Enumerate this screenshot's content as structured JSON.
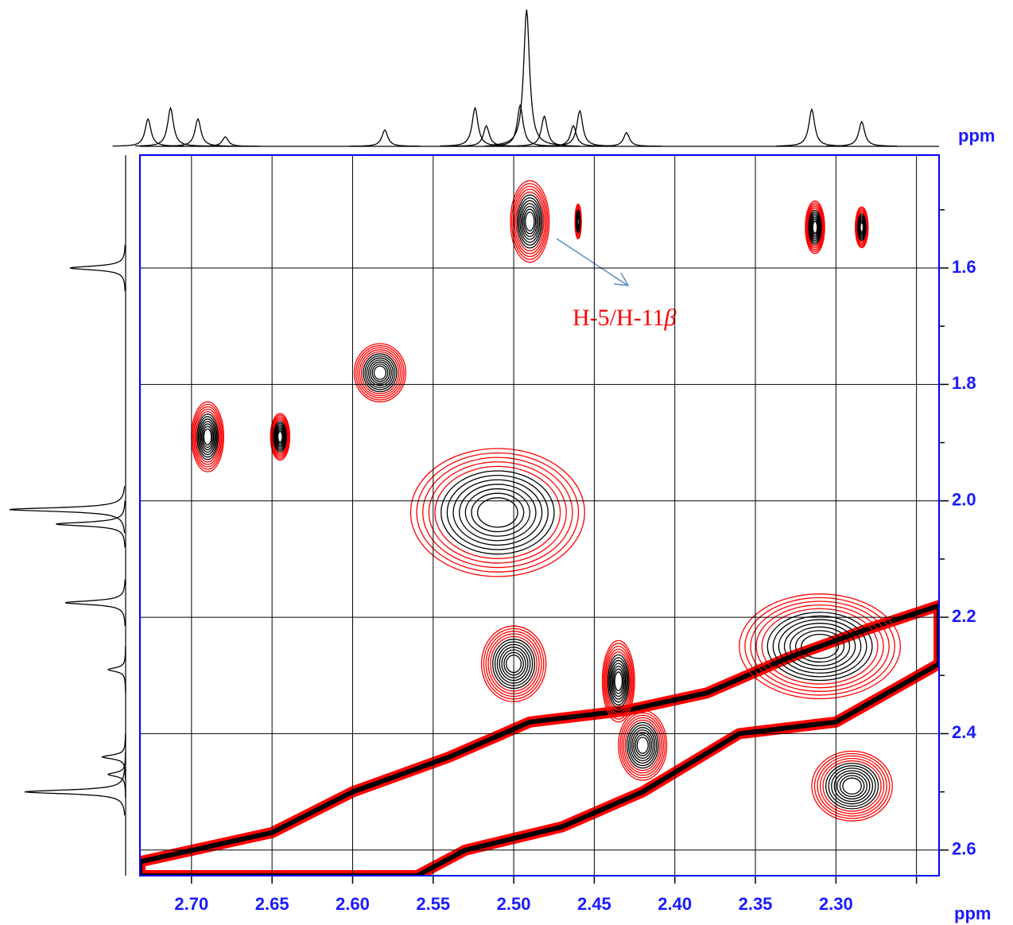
{
  "chart_data": {
    "type": "contour",
    "x_label": "ppm",
    "y_label": "ppm",
    "annotation": "H-5/H-11",
    "annotation_symbol": "β",
    "xlim": [
      2.732,
      2.236
    ],
    "ylim": [
      1.406,
      2.644
    ],
    "xticks": [
      {
        "value": 2.7,
        "label": "2.70"
      },
      2.65,
      {
        "value": 2.6,
        "label": "2.60"
      },
      2.55,
      {
        "value": 2.5,
        "label": "2.50"
      },
      2.45,
      {
        "value": 2.4,
        "label": "2.40"
      },
      2.35,
      {
        "value": 2.3,
        "label": "2.30"
      }
    ],
    "xminor_ticks": [
      2.25
    ],
    "yticks": [
      1.6,
      1.8,
      {
        "value": 2,
        "label": "2.0"
      },
      2.2,
      2.4,
      2.6
    ],
    "yminor_ticks": [
      1.5,
      1.7,
      1.9,
      2.1,
      2.3,
      2.5
    ],
    "grid": true,
    "colors": [
      "#ff0000",
      "#000000"
    ],
    "peaks": {
      "x": [
        2.49,
        2.46,
        2.313,
        2.284,
        2.583,
        2.69,
        2.645,
        2.51,
        2.5,
        2.435,
        2.42,
        2.31,
        2.29
      ],
      "y": [
        1.52,
        1.52,
        1.53,
        1.53,
        1.78,
        1.89,
        1.89,
        2.02,
        2.28,
        2.31,
        2.42,
        2.25,
        2.49
      ],
      "rx": [
        0.012,
        0.002,
        0.006,
        0.004,
        0.016,
        0.01,
        0.006,
        0.054,
        0.02,
        0.01,
        0.015,
        0.05,
        0.025
      ],
      "ry": [
        0.07,
        0.03,
        0.045,
        0.035,
        0.05,
        0.06,
        0.04,
        0.11,
        0.065,
        0.07,
        0.06,
        0.09,
        0.06
      ]
    },
    "diagonal": {
      "x": [
        2.732,
        2.65,
        2.6,
        2.54,
        2.49,
        2.43,
        2.38,
        2.33,
        2.28,
        2.236,
        2.236,
        2.3,
        2.36,
        2.42,
        2.47,
        2.53,
        2.56,
        2.732
      ],
      "y": [
        2.62,
        2.57,
        2.5,
        2.44,
        2.38,
        2.36,
        2.33,
        2.27,
        2.22,
        2.18,
        2.28,
        2.38,
        2.4,
        2.5,
        2.56,
        2.6,
        2.644,
        2.644
      ]
    },
    "top_projection": {
      "x": [
        2.727,
        2.713,
        2.696,
        2.679,
        2.58,
        2.524,
        2.517,
        2.496,
        2.492,
        2.481,
        2.463,
        2.459,
        2.43,
        2.315,
        2.284
      ],
      "height": [
        0.2,
        0.28,
        0.2,
        0.07,
        0.12,
        0.28,
        0.15,
        0.3,
        1.0,
        0.22,
        0.15,
        0.26,
        0.1,
        0.27,
        0.18
      ]
    },
    "left_projection": {
      "y": [
        1.6,
        2.015,
        2.04,
        2.175,
        2.29,
        2.44,
        2.47,
        2.5
      ],
      "height": [
        0.48,
        1.0,
        0.6,
        0.52,
        0.15,
        0.2,
        0.15,
        0.87
      ]
    }
  }
}
